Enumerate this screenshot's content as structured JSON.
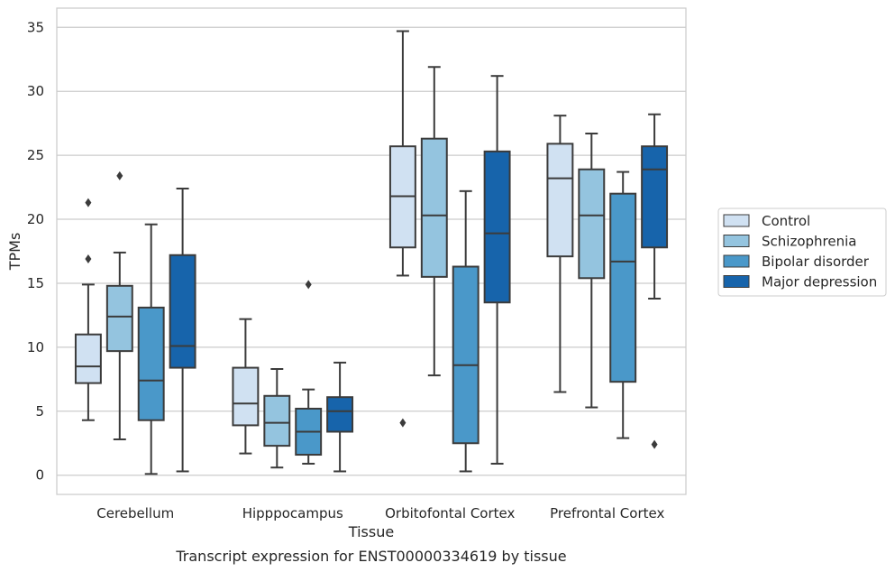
{
  "chart_data": {
    "type": "box",
    "xlabel": "Tissue",
    "ylabel": "TPMs",
    "caption": "Transcript expression for ENST00000334619 by tissue",
    "ylim": [
      -1.5,
      36.5
    ],
    "yticks": [
      0,
      5,
      10,
      15,
      20,
      25,
      30,
      35
    ],
    "grid": "horizontal",
    "legend_position": "right",
    "categories": [
      "Cerebellum",
      "Hipppocampus",
      "Orbitofontal Cortex",
      "Prefrontal Cortex"
    ],
    "series": [
      {
        "name": "Control",
        "color": "#d0e1f2",
        "boxes": [
          {
            "whislo": 4.3,
            "q1": 7.2,
            "med": 8.5,
            "q3": 11.0,
            "whishi": 14.9,
            "fliers": [
              16.9,
              21.3
            ]
          },
          {
            "whislo": 1.7,
            "q1": 3.9,
            "med": 5.6,
            "q3": 8.4,
            "whishi": 12.2,
            "fliers": []
          },
          {
            "whislo": 15.6,
            "q1": 17.8,
            "med": 21.8,
            "q3": 25.7,
            "whishi": 34.7,
            "fliers": [
              4.1
            ]
          },
          {
            "whislo": 6.5,
            "q1": 17.1,
            "med": 23.2,
            "q3": 25.9,
            "whishi": 28.1,
            "fliers": []
          }
        ]
      },
      {
        "name": "Schizophrenia",
        "color": "#94c4df",
        "boxes": [
          {
            "whislo": 2.8,
            "q1": 9.7,
            "med": 12.4,
            "q3": 14.8,
            "whishi": 17.4,
            "fliers": [
              23.4
            ]
          },
          {
            "whislo": 0.6,
            "q1": 2.3,
            "med": 4.1,
            "q3": 6.2,
            "whishi": 8.3,
            "fliers": []
          },
          {
            "whislo": 7.8,
            "q1": 15.5,
            "med": 20.3,
            "q3": 26.3,
            "whishi": 31.9,
            "fliers": []
          },
          {
            "whislo": 5.3,
            "q1": 15.4,
            "med": 20.3,
            "q3": 23.9,
            "whishi": 26.7,
            "fliers": []
          }
        ]
      },
      {
        "name": "Bipolar disorder",
        "color": "#4a98c9",
        "boxes": [
          {
            "whislo": 0.1,
            "q1": 4.3,
            "med": 7.4,
            "q3": 13.1,
            "whishi": 19.6,
            "fliers": []
          },
          {
            "whislo": 0.9,
            "q1": 1.6,
            "med": 3.4,
            "q3": 5.2,
            "whishi": 6.7,
            "fliers": [
              14.9
            ]
          },
          {
            "whislo": 0.3,
            "q1": 2.5,
            "med": 8.6,
            "q3": 16.3,
            "whishi": 22.2,
            "fliers": []
          },
          {
            "whislo": 2.9,
            "q1": 7.3,
            "med": 16.7,
            "q3": 22.0,
            "whishi": 23.7,
            "fliers": []
          }
        ]
      },
      {
        "name": "Major depression",
        "color": "#1764ab",
        "boxes": [
          {
            "whislo": 0.3,
            "q1": 8.4,
            "med": 10.1,
            "q3": 17.2,
            "whishi": 22.4,
            "fliers": []
          },
          {
            "whislo": 0.3,
            "q1": 3.4,
            "med": 5.0,
            "q3": 6.1,
            "whishi": 8.8,
            "fliers": []
          },
          {
            "whislo": 0.9,
            "q1": 13.5,
            "med": 18.9,
            "q3": 25.3,
            "whishi": 31.2,
            "fliers": []
          },
          {
            "whislo": 13.8,
            "q1": 17.8,
            "med": 23.9,
            "q3": 25.7,
            "whishi": 28.2,
            "fliers": [
              2.4
            ]
          }
        ]
      }
    ]
  }
}
